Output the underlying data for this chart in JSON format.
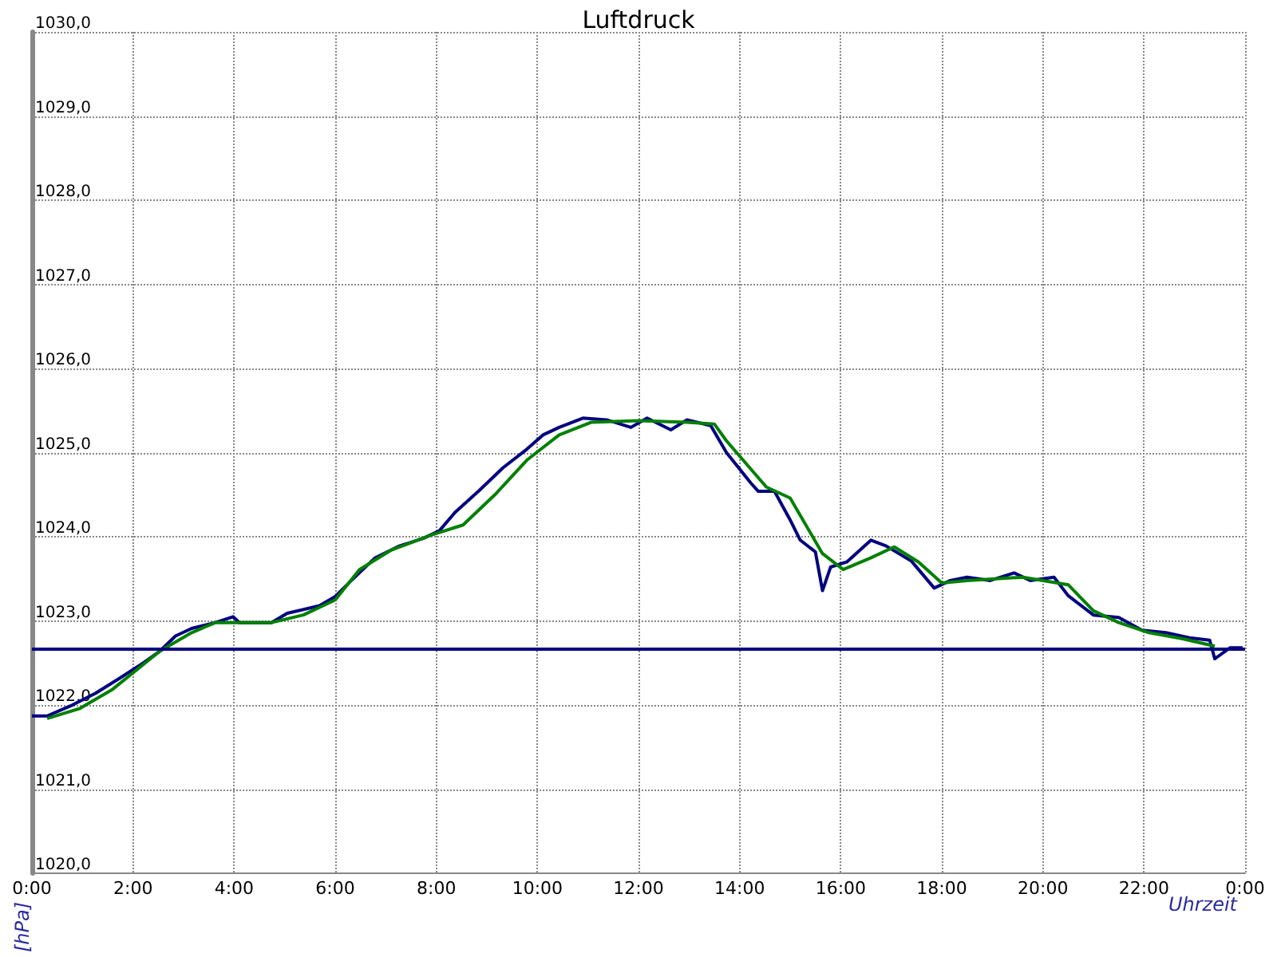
{
  "chart_data": {
    "type": "line",
    "title": "Luftdruck",
    "xlabel": "Uhrzeit",
    "ylabel": "[hPa]",
    "series": [
      {
        "color": "#000080",
        "x": [
          0,
          0.3,
          0.8,
          1.26,
          1.74,
          2.2,
          2.53,
          2.84,
          3.16,
          3.63,
          3.98,
          4.1,
          4.74,
          5.05,
          5.69,
          6.0,
          6.32,
          6.79,
          7.27,
          7.74,
          8.06,
          8.37,
          8.85,
          9.32,
          9.79,
          10.11,
          10.43,
          10.9,
          11.37,
          11.85,
          12.17,
          12.64,
          12.96,
          13.43,
          13.74,
          14.22,
          14.37,
          14.69,
          15.0,
          15.2,
          15.5,
          15.64,
          15.8,
          16.12,
          16.6,
          16.9,
          17.4,
          17.85,
          18.17,
          18.5,
          18.96,
          19.43,
          19.75,
          20.22,
          20.5,
          21.0,
          21.5,
          21.96,
          22.43,
          22.9,
          23.3,
          23.4,
          23.7,
          23.95
        ],
        "values": [
          1021.87,
          1021.87,
          1022.0,
          1022.14,
          1022.32,
          1022.5,
          1022.64,
          1022.82,
          1022.91,
          1022.98,
          1023.05,
          1022.98,
          1022.98,
          1023.09,
          1023.18,
          1023.29,
          1023.48,
          1023.75,
          1023.89,
          1023.98,
          1024.07,
          1024.29,
          1024.55,
          1024.82,
          1025.04,
          1025.21,
          1025.3,
          1025.41,
          1025.39,
          1025.3,
          1025.41,
          1025.27,
          1025.39,
          1025.32,
          1025.0,
          1024.64,
          1024.54,
          1024.54,
          1024.2,
          1023.96,
          1023.82,
          1023.36,
          1023.64,
          1023.7,
          1023.96,
          1023.89,
          1023.71,
          1023.39,
          1023.48,
          1023.52,
          1023.48,
          1023.57,
          1023.48,
          1023.52,
          1023.3,
          1023.07,
          1023.04,
          1022.89,
          1022.86,
          1022.8,
          1022.77,
          1022.55,
          1022.68,
          1022.68
        ]
      },
      {
        "color": "#008000",
        "x": [
          0.3,
          0.95,
          1.58,
          2.53,
          3.16,
          3.63,
          4.74,
          5.37,
          6.0,
          6.48,
          7.1,
          7.9,
          8.53,
          9.16,
          9.79,
          10.43,
          11.06,
          12.0,
          12.96,
          13.5,
          13.74,
          14.53,
          15.0,
          15.64,
          16.05,
          16.6,
          17.06,
          17.54,
          18.0,
          18.5,
          19.6,
          20.5,
          21.0,
          21.5,
          22.1,
          22.75,
          23.4
        ],
        "values": [
          1021.84,
          1021.96,
          1022.18,
          1022.64,
          1022.86,
          1022.98,
          1022.98,
          1023.07,
          1023.25,
          1023.61,
          1023.84,
          1024.02,
          1024.14,
          1024.5,
          1024.91,
          1025.21,
          1025.36,
          1025.38,
          1025.36,
          1025.34,
          1025.14,
          1024.59,
          1024.46,
          1023.8,
          1023.61,
          1023.75,
          1023.88,
          1023.7,
          1023.45,
          1023.48,
          1023.52,
          1023.43,
          1023.12,
          1022.98,
          1022.86,
          1022.79,
          1022.7
        ]
      }
    ],
    "xlim": [
      0,
      24
    ],
    "xticks": [
      {
        "value": 0,
        "label": "0:00"
      },
      {
        "value": 2,
        "label": "2:00"
      },
      {
        "value": 4,
        "label": "4:00"
      },
      {
        "value": 6,
        "label": "6:00"
      },
      {
        "value": 8,
        "label": "8:00"
      },
      {
        "value": 10,
        "label": "10:00"
      },
      {
        "value": 12,
        "label": "12:00"
      },
      {
        "value": 14,
        "label": "14:00"
      },
      {
        "value": 16,
        "label": "16:00"
      },
      {
        "value": 18,
        "label": "18:00"
      },
      {
        "value": 20,
        "label": "20:00"
      },
      {
        "value": 22,
        "label": "22:00"
      },
      {
        "value": 24,
        "label": "0:00"
      }
    ],
    "ylim": [
      1020,
      1030
    ],
    "yticks": [
      {
        "value": 1020,
        "label": "1020,0"
      },
      {
        "value": 1021,
        "label": "1021,0"
      },
      {
        "value": 1022,
        "label": "1022,0"
      },
      {
        "value": 1023,
        "label": "1023,0"
      },
      {
        "value": 1024,
        "label": "1024,0"
      },
      {
        "value": 1025,
        "label": "1025,0"
      },
      {
        "value": 1026,
        "label": "1026,0"
      },
      {
        "value": 1027,
        "label": "1027,0"
      },
      {
        "value": 1028,
        "label": "1028,0"
      },
      {
        "value": 1029,
        "label": "1029,0"
      },
      {
        "value": 1030,
        "label": "1030,0"
      }
    ],
    "ref_lines": [
      {
        "axis": "y",
        "value": 1022.66,
        "color": "#000080",
        "line_style": "solid"
      }
    ],
    "grid": true,
    "marker": "none",
    "line_style": "solid"
  }
}
